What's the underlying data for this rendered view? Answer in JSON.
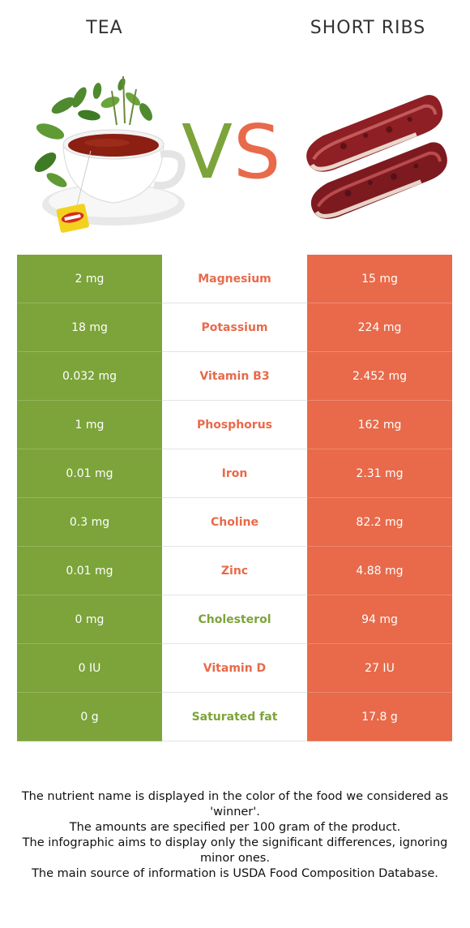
{
  "header": {
    "left_title": "TEA",
    "right_title": "SHORT RIBS",
    "vs_v": "V",
    "vs_s": "S"
  },
  "colors": {
    "left_food": "#7ca43a",
    "right_food": "#e86a4a"
  },
  "images": {
    "left": "tea-cup-image",
    "right": "short-ribs-image"
  },
  "rows": [
    {
      "left": "2 mg",
      "nutrient": "Magnesium",
      "right": "15 mg",
      "winner": "right"
    },
    {
      "left": "18 mg",
      "nutrient": "Potassium",
      "right": "224 mg",
      "winner": "right"
    },
    {
      "left": "0.032 mg",
      "nutrient": "Vitamin B3",
      "right": "2.452 mg",
      "winner": "right"
    },
    {
      "left": "1 mg",
      "nutrient": "Phosphorus",
      "right": "162 mg",
      "winner": "right"
    },
    {
      "left": "0.01 mg",
      "nutrient": "Iron",
      "right": "2.31 mg",
      "winner": "right"
    },
    {
      "left": "0.3 mg",
      "nutrient": "Choline",
      "right": "82.2 mg",
      "winner": "right"
    },
    {
      "left": "0.01 mg",
      "nutrient": "Zinc",
      "right": "4.88 mg",
      "winner": "right"
    },
    {
      "left": "0 mg",
      "nutrient": "Cholesterol",
      "right": "94 mg",
      "winner": "left"
    },
    {
      "left": "0 IU",
      "nutrient": "Vitamin D",
      "right": "27 IU",
      "winner": "right"
    },
    {
      "left": "0 g",
      "nutrient": "Saturated fat",
      "right": "17.8 g",
      "winner": "left"
    }
  ],
  "footnote": {
    "line1": "The nutrient name is displayed in the color of the food we considered as 'winner'.",
    "line2": "The amounts are specified per 100 gram of the product.",
    "line3": "The infographic aims to display only the significant differences, ignoring minor ones.",
    "line4": "The main source of information is USDA Food Composition Database."
  }
}
